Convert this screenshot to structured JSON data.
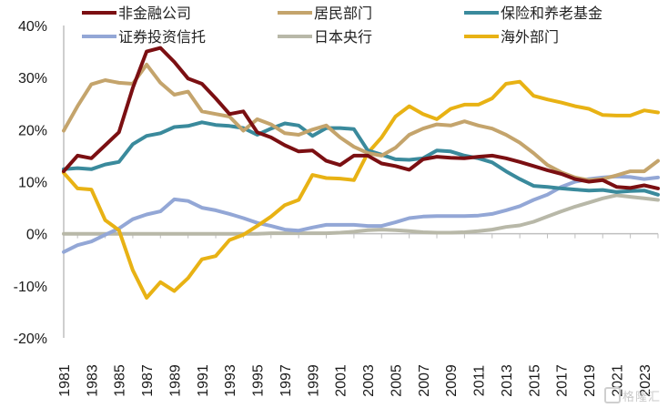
{
  "chart_data": {
    "type": "line",
    "title": "",
    "xlabel": "",
    "ylabel": "",
    "ylim": [
      -20,
      40
    ],
    "yticks": [
      -20,
      -10,
      0,
      10,
      20,
      30,
      40
    ],
    "ytick_labels": [
      "-20%",
      "-10%",
      "0%",
      "10%",
      "20%",
      "30%",
      "40%"
    ],
    "xlim": [
      1981,
      2024
    ],
    "xtick_labels": [
      "1981",
      "1983",
      "1985",
      "1987",
      "1989",
      "1991",
      "1993",
      "1995",
      "1997",
      "1999",
      "2001",
      "2003",
      "2005",
      "2007",
      "2009",
      "2011",
      "2013",
      "2015",
      "2017",
      "2019",
      "2021",
      "2023"
    ],
    "grid": false,
    "legend_position": "top",
    "x": [
      1981,
      1982,
      1983,
      1984,
      1985,
      1986,
      1987,
      1988,
      1989,
      1990,
      1991,
      1992,
      1993,
      1994,
      1995,
      1996,
      1997,
      1998,
      1999,
      2000,
      2001,
      2002,
      2003,
      2004,
      2005,
      2006,
      2007,
      2008,
      2009,
      2010,
      2011,
      2012,
      2013,
      2014,
      2015,
      2016,
      2017,
      2018,
      2019,
      2020,
      2021,
      2022,
      2023,
      2024
    ],
    "series": [
      {
        "name": "非金融公司",
        "color": "#7b0f12",
        "values": [
          12,
          15,
          14.5,
          17,
          19.5,
          28,
          35,
          35.7,
          33,
          29.8,
          28.8,
          26,
          23,
          23.5,
          19.5,
          18.5,
          17,
          15.8,
          16,
          14,
          13.2,
          15,
          15,
          13.5,
          13,
          12.3,
          14.3,
          14.8,
          14.6,
          14.5,
          14.8,
          15,
          14.5,
          13.8,
          13,
          12.2,
          11.5,
          10.5,
          10,
          10.3,
          9,
          8.8,
          9.3,
          8.7
        ]
      },
      {
        "name": "居民部门",
        "color": "#c4a46c",
        "values": [
          19.8,
          24.5,
          28.7,
          29.5,
          29,
          28.8,
          32.5,
          29,
          26.7,
          27.3,
          23.5,
          23,
          22.5,
          19.8,
          22,
          21,
          19.3,
          19,
          20,
          20.8,
          18.5,
          16.7,
          15.5,
          15,
          16.5,
          19,
          20.2,
          21,
          20.8,
          21.6,
          20.8,
          20.2,
          19,
          17.5,
          15.5,
          13.2,
          11.8,
          10.8,
          10.3,
          10.5,
          11.2,
          12,
          12,
          14
        ]
      },
      {
        "name": "保险和养老基金",
        "color": "#3a8a9c",
        "values": [
          12.4,
          12.6,
          12.4,
          13.3,
          13.8,
          17.2,
          18.8,
          19.3,
          20.5,
          20.7,
          21.4,
          20.9,
          20.7,
          20.3,
          19,
          20.2,
          21.2,
          20.8,
          18.8,
          20.3,
          20.3,
          20.1,
          16,
          15.2,
          14.3,
          14.2,
          14.5,
          16,
          15.8,
          15,
          14.5,
          13.7,
          12,
          10.5,
          9.2,
          9,
          8.7,
          8.5,
          8.3,
          8.4,
          8,
          8.2,
          8.3,
          7.5
        ]
      },
      {
        "name": "证券投资信托",
        "color": "#93a7d6",
        "values": [
          -3.5,
          -2.2,
          -1.5,
          -0.2,
          1,
          2.8,
          3.7,
          4.3,
          6.6,
          6.3,
          5,
          4.5,
          3.8,
          3,
          2.1,
          1.5,
          0.8,
          0.6,
          1.2,
          1.7,
          1.7,
          1.7,
          1.5,
          1.5,
          2.2,
          3,
          3.3,
          3.4,
          3.4,
          3.4,
          3.5,
          3.8,
          4.5,
          5.3,
          6.5,
          7.5,
          9,
          10,
          10.5,
          10.8,
          11,
          10.9,
          10.5,
          10.8
        ]
      },
      {
        "name": "日本央行",
        "color": "#b8b8a8",
        "values": [
          0,
          0,
          0,
          0,
          0,
          0,
          0,
          0,
          0,
          0,
          0,
          0,
          0,
          0,
          0,
          0.1,
          0.1,
          0.1,
          0.1,
          0.1,
          0.2,
          0.4,
          0.7,
          0.8,
          0.7,
          0.5,
          0.3,
          0.2,
          0.2,
          0.3,
          0.5,
          0.8,
          1.3,
          1.6,
          2.3,
          3.3,
          4.3,
          5.2,
          6,
          6.8,
          7.4,
          7.1,
          6.8,
          6.5
        ]
      },
      {
        "name": "海外部门",
        "color": "#e8b214",
        "values": [
          11.7,
          8.7,
          8.5,
          2.6,
          0.7,
          -7,
          -12.3,
          -9.3,
          -11,
          -8.5,
          -4.9,
          -4.3,
          -1.2,
          -0.2,
          1.5,
          3.3,
          5.5,
          6.5,
          11.3,
          10.7,
          10.6,
          10.3,
          15.5,
          18.5,
          22.5,
          24.5,
          23,
          22,
          24,
          24.8,
          24.8,
          26,
          28.8,
          29.2,
          26.5,
          25.8,
          25.2,
          24.5,
          24,
          22.8,
          22.7,
          22.7,
          23.7,
          23.3
        ]
      }
    ]
  },
  "watermark": {
    "text": "格隆汇"
  }
}
